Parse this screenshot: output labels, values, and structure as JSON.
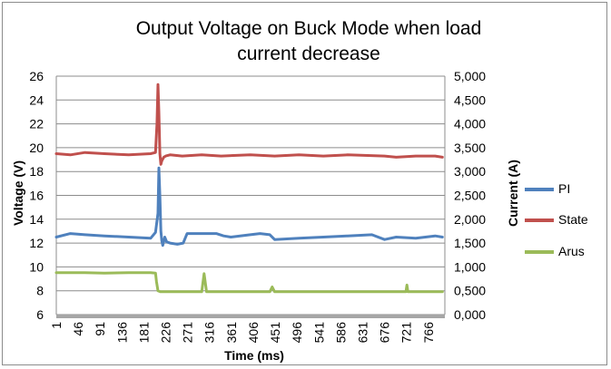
{
  "chart_data": {
    "type": "line",
    "title_line1": "Output Voltage on Buck Mode when load",
    "title_line2": "current decrease",
    "xlabel": "Time (ms)",
    "ylabel_left": "Voltage (V)",
    "ylabel_right": "Current (A)",
    "x_tick_labels": [
      "1",
      "46",
      "91",
      "136",
      "181",
      "226",
      "271",
      "316",
      "361",
      "406",
      "451",
      "496",
      "541",
      "586",
      "631",
      "676",
      "721",
      "766"
    ],
    "x_range": [
      1,
      800
    ],
    "y_left_ticks": [
      "26",
      "24",
      "22",
      "20",
      "18",
      "16",
      "14",
      "12",
      "10",
      "8",
      "6"
    ],
    "y_left_range": [
      6,
      26
    ],
    "y_right_ticks": [
      "5,000",
      "4,500",
      "4,000",
      "3,500",
      "3,000",
      "2,500",
      "2,000",
      "1,500",
      "1,000",
      "0,500",
      "0,000"
    ],
    "y_right_range": [
      0,
      5
    ],
    "grid": "horizontal",
    "legend_position": "right",
    "series": [
      {
        "name": "PI",
        "color": "#4f81bd",
        "x": [
          1,
          30,
          60,
          100,
          150,
          195,
          205,
          210,
          212,
          214,
          216,
          218,
          220,
          224,
          228,
          235,
          250,
          262,
          270,
          300,
          330,
          345,
          360,
          400,
          420,
          440,
          450,
          500,
          550,
          600,
          650,
          676,
          700,
          740,
          780,
          795
        ],
        "values": [
          12.5,
          12.8,
          12.7,
          12.6,
          12.5,
          12.4,
          12.9,
          14.5,
          18.3,
          16.0,
          13.0,
          12.2,
          11.8,
          12.5,
          12.1,
          12.0,
          11.9,
          12.0,
          12.8,
          12.8,
          12.8,
          12.6,
          12.5,
          12.7,
          12.8,
          12.7,
          12.3,
          12.4,
          12.5,
          12.6,
          12.7,
          12.3,
          12.5,
          12.4,
          12.6,
          12.5
        ]
      },
      {
        "name": "State",
        "color": "#c0504d",
        "x": [
          1,
          30,
          60,
          100,
          150,
          195,
          205,
          208,
          210,
          212,
          214,
          216,
          218,
          222,
          226,
          235,
          260,
          300,
          340,
          400,
          450,
          500,
          550,
          600,
          676,
          700,
          740,
          780,
          795
        ],
        "values": [
          19.5,
          19.4,
          19.6,
          19.5,
          19.4,
          19.5,
          19.6,
          22.0,
          25.3,
          23.0,
          19.5,
          18.6,
          18.9,
          19.2,
          19.3,
          19.4,
          19.3,
          19.4,
          19.3,
          19.4,
          19.3,
          19.4,
          19.3,
          19.4,
          19.3,
          19.2,
          19.3,
          19.3,
          19.2
        ]
      },
      {
        "name": "Arus",
        "color": "#9bbb59",
        "x": [
          1,
          30,
          60,
          100,
          150,
          195,
          205,
          207,
          210,
          215,
          225,
          250,
          290,
          300,
          305,
          310,
          330,
          360,
          400,
          440,
          445,
          450,
          500,
          550,
          600,
          650,
          700,
          720,
          722,
          724,
          740,
          780,
          795
        ],
        "values": [
          0.88,
          0.88,
          0.88,
          0.87,
          0.88,
          0.88,
          0.87,
          0.7,
          0.5,
          0.48,
          0.48,
          0.48,
          0.48,
          0.48,
          0.86,
          0.48,
          0.48,
          0.48,
          0.48,
          0.48,
          0.58,
          0.48,
          0.48,
          0.48,
          0.48,
          0.48,
          0.48,
          0.48,
          0.62,
          0.48,
          0.48,
          0.48,
          0.48
        ]
      }
    ]
  }
}
